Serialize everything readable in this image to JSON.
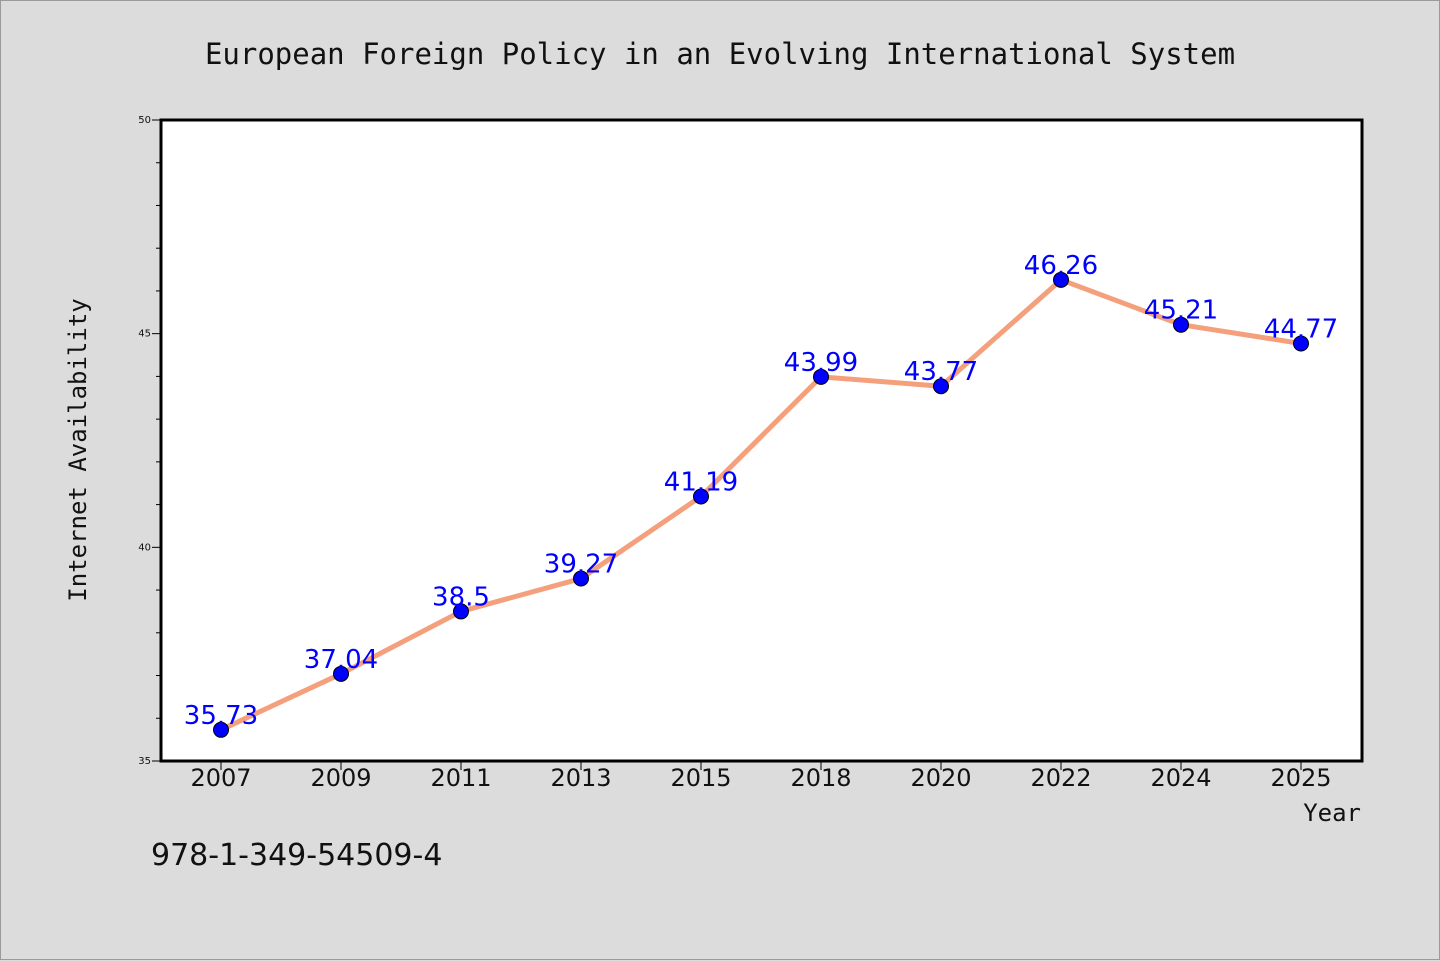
{
  "chart_data": {
    "type": "line",
    "title": "European Foreign Policy in an Evolving International System",
    "xlabel": "Year",
    "ylabel": "Internet Availability",
    "categories": [
      "2007",
      "2009",
      "2011",
      "2013",
      "2015",
      "2018",
      "2020",
      "2022",
      "2024",
      "2025"
    ],
    "series": [
      {
        "values": [
          35.73,
          37.04,
          38.5,
          39.27,
          41.19,
          43.99,
          43.77,
          46.26,
          45.21,
          44.77
        ],
        "data_labels": [
          "35.73",
          "37.04",
          "38.5",
          "39.27",
          "41.19",
          "43.99",
          "43.77",
          "46.26",
          "45.21",
          "44.77"
        ]
      }
    ],
    "ylim": [
      35,
      50
    ],
    "y_ticks": [
      "35",
      "40",
      "45",
      "50"
    ],
    "grid": false,
    "legend": "none",
    "line_color": "#f4a07c",
    "marker_color": "#0000ff",
    "label_color": "#0000ff"
  },
  "annotation": {
    "isbn": "978-1-349-54509-4"
  }
}
